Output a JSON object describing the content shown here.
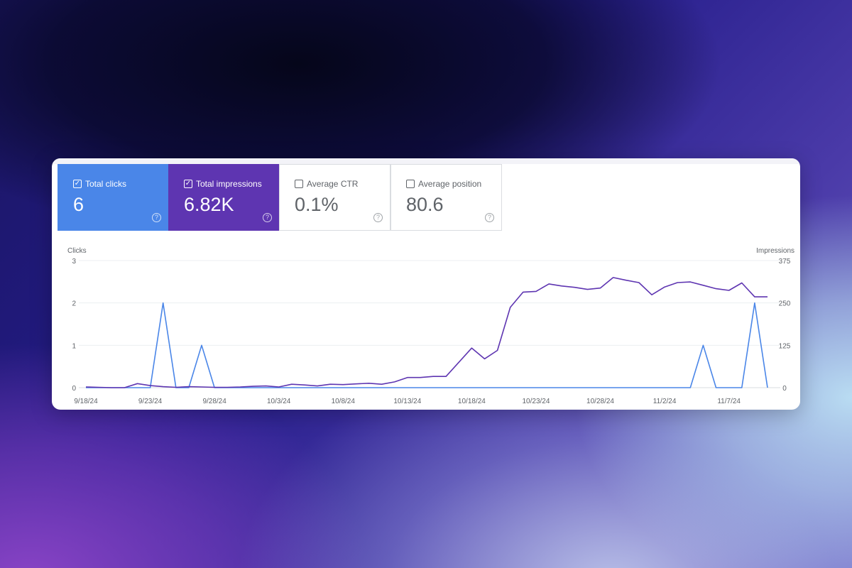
{
  "metrics": [
    {
      "label": "Total clicks",
      "value": "6",
      "checked": true,
      "color": "#4a86e8"
    },
    {
      "label": "Total impressions",
      "value": "6.82K",
      "checked": true,
      "color": "#5e35b1"
    },
    {
      "label": "Average CTR",
      "value": "0.1%",
      "checked": false
    },
    {
      "label": "Average position",
      "value": "80.6",
      "checked": false
    }
  ],
  "checkbox_checked_glyph": "✓",
  "help_glyph": "?",
  "chart_data": {
    "type": "line",
    "x_ticks": [
      "9/18/24",
      "9/23/24",
      "9/28/24",
      "10/3/24",
      "10/8/24",
      "10/13/24",
      "10/18/24",
      "10/23/24",
      "10/28/24",
      "11/2/24",
      "11/7/24"
    ],
    "x_start": "9/18/24",
    "y_left": {
      "label": "Clicks",
      "ticks": [
        "0",
        "1",
        "2",
        "3"
      ],
      "lim": [
        0,
        3
      ]
    },
    "y_right": {
      "label": "Impressions",
      "ticks": [
        "0",
        "125",
        "250",
        "375"
      ],
      "lim": [
        0,
        375
      ]
    },
    "grid": true,
    "series": [
      {
        "name": "Clicks",
        "axis": "left",
        "color": "#4a86e8",
        "values": [
          0,
          0,
          0,
          0,
          0,
          0,
          2,
          0,
          0,
          1,
          0,
          0,
          0,
          0,
          0,
          0,
          0,
          0,
          0,
          0,
          0,
          0,
          0,
          0,
          0,
          0,
          0,
          0,
          0,
          0,
          0,
          0,
          0,
          0,
          0,
          0,
          0,
          0,
          0,
          0,
          0,
          0,
          0,
          0,
          0,
          0,
          0,
          0,
          1,
          0,
          0,
          0,
          2,
          0
        ]
      },
      {
        "name": "Impressions",
        "axis": "right",
        "color": "#5e35b1",
        "values": [
          2,
          1,
          0,
          0,
          12,
          6,
          3,
          1,
          3,
          2,
          1,
          1,
          2,
          4,
          5,
          2,
          10,
          8,
          5,
          10,
          9,
          11,
          13,
          10,
          17,
          30,
          30,
          33,
          33,
          75,
          117,
          85,
          110,
          237,
          282,
          284,
          306,
          300,
          296,
          290,
          294,
          325,
          317,
          310,
          274,
          297,
          310,
          312,
          302,
          292,
          287,
          309,
          268,
          268
        ]
      }
    ]
  }
}
